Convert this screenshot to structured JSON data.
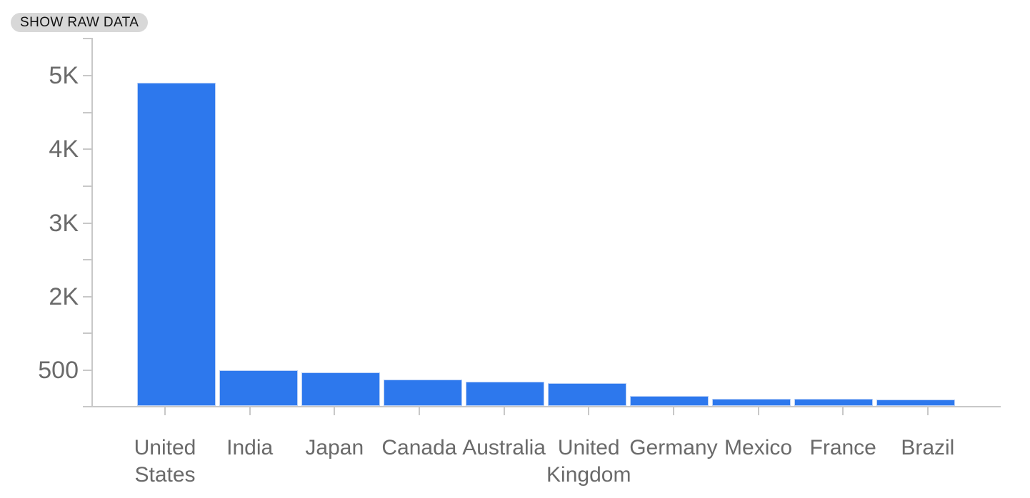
{
  "toolbar": {
    "show_raw_data_label": "SHOW RAW DATA"
  },
  "colors": {
    "bar": "#2d78ed",
    "bar_border": "#b9d0f6",
    "axis": "#c8c8c8",
    "label": "#6a6a6a",
    "button_bg": "#d8d8d8",
    "button_text": "#111111"
  },
  "chart_data": {
    "type": "bar",
    "title": "",
    "xlabel": "",
    "ylabel": "",
    "categories": [
      "United States",
      "India",
      "Japan",
      "Canada",
      "Australia",
      "United Kingdom",
      "Germany",
      "Mexico",
      "France",
      "Brazil"
    ],
    "values": [
      4890,
      490,
      460,
      360,
      330,
      310,
      140,
      100,
      100,
      90
    ],
    "y_axis": {
      "tick_labels": [
        "5K",
        "4K",
        "3K",
        "2K",
        "500"
      ],
      "tick_values": [
        5000,
        4000,
        3000,
        2000,
        500
      ],
      "baseline_value": 0,
      "minor_ticks_between_majors": true,
      "grid": false
    },
    "legend": null,
    "layout_hints": {
      "bar_color_note": "single blue series, no legend, white plot background, no gridlines"
    }
  }
}
